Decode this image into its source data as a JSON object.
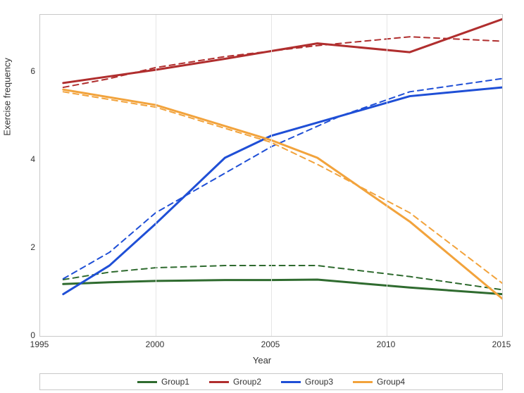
{
  "chart": {
    "type": "line",
    "background_color": "#ffffff",
    "border_color": "#c8c8c8",
    "grid_color": "#e6e6e6",
    "xlabel": "Year",
    "ylabel": "Exercise frequency",
    "label_fontsize": 13,
    "tick_fontsize": 12,
    "xlim": [
      1995,
      2015
    ],
    "ylim": [
      0,
      7.3
    ],
    "xticks": [
      1995,
      2000,
      2005,
      2010,
      2015
    ],
    "yticks": [
      0,
      2,
      4,
      6
    ],
    "vgrid_at": [
      2000,
      2005,
      2010
    ],
    "line_width_solid": 3,
    "line_width_dashed": 2,
    "dash_pattern": "8 6",
    "series": [
      {
        "name": "Group1",
        "color": "#2f6b2f",
        "x": [
          1996,
          1998,
          2000,
          2003,
          2005,
          2007,
          2011,
          2015
        ],
        "y_solid": [
          1.18,
          1.22,
          1.25,
          1.27,
          1.27,
          1.28,
          1.1,
          0.95
        ],
        "y_dashed": [
          1.28,
          1.45,
          1.55,
          1.6,
          1.6,
          1.6,
          1.35,
          1.05
        ]
      },
      {
        "name": "Group2",
        "color": "#b02e2e",
        "x": [
          1996,
          1998,
          2000,
          2003,
          2007,
          2011,
          2015
        ],
        "y_solid": [
          5.75,
          5.9,
          6.05,
          6.3,
          6.65,
          6.45,
          7.2
        ],
        "y_dashed": [
          5.65,
          5.85,
          6.1,
          6.35,
          6.6,
          6.8,
          6.7
        ]
      },
      {
        "name": "Group3",
        "color": "#1f4fd6",
        "x": [
          1996,
          1998,
          2000,
          2003,
          2005,
          2008,
          2011,
          2015
        ],
        "y_solid": [
          0.95,
          1.6,
          2.55,
          4.05,
          4.55,
          5.0,
          5.45,
          5.65
        ],
        "y_dashed": [
          1.3,
          1.9,
          2.8,
          3.7,
          4.3,
          5.0,
          5.55,
          5.85
        ]
      },
      {
        "name": "Group4",
        "color": "#f2a33c",
        "x": [
          1996,
          2000,
          2005,
          2007,
          2011,
          2015
        ],
        "y_solid": [
          5.6,
          5.25,
          4.45,
          4.05,
          2.6,
          0.85
        ],
        "y_dashed": [
          5.55,
          5.2,
          4.4,
          3.9,
          2.8,
          1.2
        ]
      }
    ],
    "legend": {
      "items": [
        {
          "label": "Group1",
          "color": "#2f6b2f"
        },
        {
          "label": "Group2",
          "color": "#b02e2e"
        },
        {
          "label": "Group3",
          "color": "#1f4fd6"
        },
        {
          "label": "Group4",
          "color": "#f2a33c"
        }
      ]
    }
  }
}
